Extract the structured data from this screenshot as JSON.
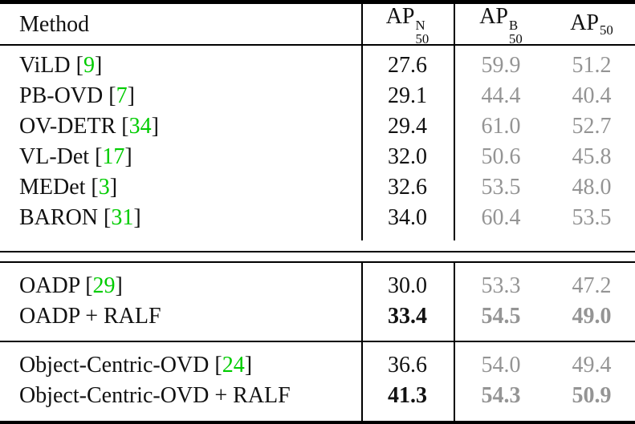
{
  "colors": {
    "citation_green": "#00cc00",
    "muted_gray": "#949494",
    "rule_black": "#000000",
    "text_black": "#111111"
  },
  "table": {
    "header": {
      "method": "Method",
      "col_novel": {
        "base": "AP",
        "sup": "N",
        "sub": "50"
      },
      "col_base": {
        "base": "AP",
        "sup": "B",
        "sub": "50"
      },
      "col_all": {
        "base": "AP",
        "sub": "50"
      }
    },
    "sections": [
      {
        "rows": [
          {
            "pre": "ViLD [",
            "cite": "9",
            "post": "]",
            "ap_n": "27.6",
            "ap_b": "59.9",
            "ap": "51.2"
          },
          {
            "pre": "PB-OVD [",
            "cite": "7",
            "post": "]",
            "ap_n": "29.1",
            "ap_b": "44.4",
            "ap": "40.4"
          },
          {
            "pre": "OV-DETR [",
            "cite": "34",
            "post": "]",
            "ap_n": "29.4",
            "ap_b": "61.0",
            "ap": "52.7"
          },
          {
            "pre": "VL-Det [",
            "cite": "17",
            "post": "]",
            "ap_n": "32.0",
            "ap_b": "50.6",
            "ap": "45.8"
          },
          {
            "pre": "MEDet [",
            "cite": "3",
            "post": "]",
            "ap_n": "32.6",
            "ap_b": "53.5",
            "ap": "48.0"
          },
          {
            "pre": "BARON [",
            "cite": "31",
            "post": "]",
            "ap_n": "34.0",
            "ap_b": "60.4",
            "ap": "53.5"
          }
        ]
      },
      {
        "rows": [
          {
            "pre": "OADP [",
            "cite": "29",
            "post": "]",
            "ap_n": "30.0",
            "ap_b": "53.3",
            "ap": "47.2"
          },
          {
            "pre": "OADP + RALF",
            "cite": "",
            "post": "",
            "ap_n": "33.4",
            "ap_b": "54.5",
            "ap": "49.0",
            "bold": true
          }
        ]
      },
      {
        "rows": [
          {
            "pre": "Object-Centric-OVD [",
            "cite": "24",
            "post": "]",
            "ap_n": "36.6",
            "ap_b": "54.0",
            "ap": "49.4"
          },
          {
            "pre": "Object-Centric-OVD + RALF",
            "cite": "",
            "post": "",
            "ap_n": "41.3",
            "ap_b": "54.3",
            "ap": "50.9",
            "bold": true
          }
        ]
      }
    ]
  }
}
